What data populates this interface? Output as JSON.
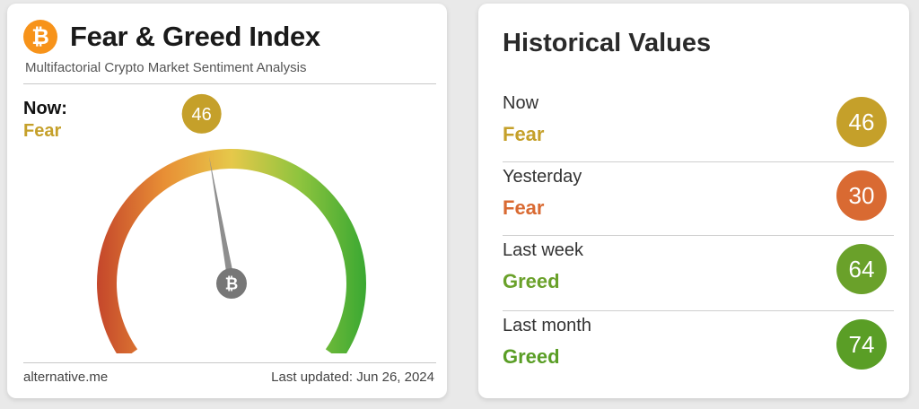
{
  "header": {
    "title": "Fear & Greed Index",
    "subtitle": "Multifactorial Crypto Market Sentiment Analysis",
    "logo_glyph": "₿",
    "logo_color": "#f7931a"
  },
  "current": {
    "label": "Now:",
    "classification": "Fear",
    "value": "46",
    "value_number": 46,
    "color": "#c5a02a"
  },
  "gauge": {
    "min": 0,
    "max": 100,
    "needle_value": 46,
    "center_glyph": "₿",
    "colors": [
      "#c4462b",
      "#e88f35",
      "#e6c84a",
      "#8fc43e",
      "#3aa832"
    ]
  },
  "footer": {
    "site": "alternative.me",
    "last_updated": "Last updated: Jun 26, 2024"
  },
  "history": {
    "title": "Historical Values",
    "rows": [
      {
        "label": "Now",
        "classification": "Fear",
        "value": "46",
        "color": "#c5a02a",
        "class_color": "#c5a02a"
      },
      {
        "label": "Yesterday",
        "classification": "Fear",
        "value": "30",
        "color": "#d96a32",
        "class_color": "#d96a32"
      },
      {
        "label": "Last week",
        "classification": "Greed",
        "value": "64",
        "color": "#6aa12a",
        "class_color": "#6aa12a"
      },
      {
        "label": "Last month",
        "classification": "Greed",
        "value": "74",
        "color": "#5a9e26",
        "class_color": "#5a9e26"
      }
    ]
  }
}
